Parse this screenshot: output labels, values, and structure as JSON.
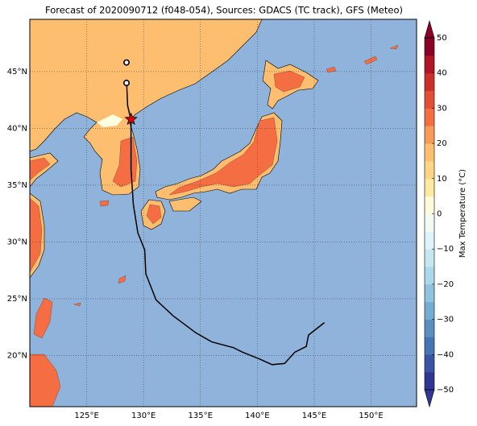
{
  "chart_data": {
    "type": "map",
    "title": "Forecast of 2020090712 (f048-054), Sources: GDACS (TC track), GFS (Meteo)",
    "xlim": [
      120,
      154
    ],
    "ylim": [
      15.5,
      49.6
    ],
    "xticks": [
      {
        "value": 125,
        "label": "125°E"
      },
      {
        "value": 130,
        "label": "130°E"
      },
      {
        "value": 135,
        "label": "135°E"
      },
      {
        "value": 140,
        "label": "140°E"
      },
      {
        "value": 145,
        "label": "145°E"
      },
      {
        "value": 150,
        "label": "150°E"
      }
    ],
    "yticks": [
      {
        "value": 20,
        "label": "20°N"
      },
      {
        "value": 25,
        "label": "25°N"
      },
      {
        "value": 30,
        "label": "30°N"
      },
      {
        "value": 35,
        "label": "35°N"
      },
      {
        "value": 40,
        "label": "40°N"
      },
      {
        "value": 45,
        "label": "45°N"
      }
    ],
    "grid": true,
    "ocean_color": "#8fb3da",
    "series": [
      {
        "color": "#000000",
        "x": [
          145.9,
          144.5,
          144.3,
          143.3,
          142.4,
          141.3,
          140.2,
          138.7,
          137.9,
          136.0,
          134.6,
          132.6,
          131.1,
          130.2,
          130.1,
          129.5,
          129.1,
          128.9,
          128.9,
          128.9,
          128.6,
          128.5
        ],
        "values": [
          22.9,
          21.8,
          20.8,
          20.3,
          19.3,
          19.2,
          19.7,
          20.3,
          20.7,
          21.2,
          22.0,
          23.5,
          24.9,
          27.2,
          29.3,
          30.8,
          33.3,
          36.4,
          38.9,
          40.7,
          42.0,
          44.3
        ]
      }
    ],
    "markers": [
      {
        "marker": "star",
        "color": "#e00000",
        "x": 128.9,
        "y": 40.8
      },
      {
        "marker": "circle",
        "color": "#ffffff",
        "x": 128.5,
        "y": 45.8
      },
      {
        "marker": "circle",
        "color": "#ffffff",
        "x": 128.5,
        "y": 44.0
      }
    ],
    "colorbar": {
      "label": "Max Temperature (°C)",
      "clim": [
        -50,
        50
      ],
      "extend": "both",
      "ticks": [
        {
          "value": -50,
          "label": "−50"
        },
        {
          "value": -40,
          "label": "−40"
        },
        {
          "value": -30,
          "label": "−30"
        },
        {
          "value": -20,
          "label": "−20"
        },
        {
          "value": -10,
          "label": "−10"
        },
        0,
        10,
        20,
        30,
        40,
        50
      ],
      "colors": [
        "#313695",
        "#3a54a4",
        "#4575b4",
        "#5b8fc2",
        "#74add1",
        "#90c3dd",
        "#abd9e9",
        "#c6e6f0",
        "#e0f3f8",
        "#f2faf3",
        "#fffbd8",
        "#fee9a0",
        "#fed586",
        "#fdbf6f",
        "#f89a58",
        "#f46d43",
        "#e34f36",
        "#cc2f28",
        "#b11526",
        "#8a0326"
      ]
    }
  }
}
